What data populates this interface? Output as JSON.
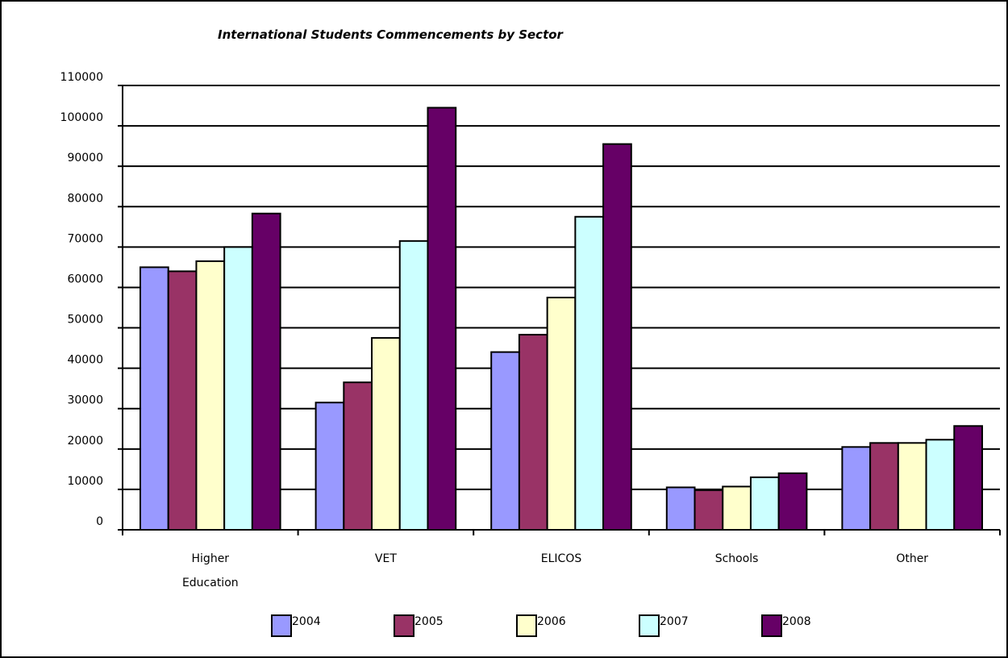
{
  "chart_data": {
    "type": "bar",
    "title": "International Students Commencements by Sector",
    "xlabel": "",
    "ylabel": "",
    "ylim": [
      0,
      110000
    ],
    "yticks": [
      0,
      10000,
      20000,
      30000,
      40000,
      50000,
      60000,
      70000,
      80000,
      90000,
      100000,
      110000
    ],
    "grid": true,
    "legend_position": "bottom",
    "categories": [
      [
        "Higher",
        "Education"
      ],
      [
        "VET"
      ],
      [
        "ELICOS"
      ],
      [
        "Schools"
      ],
      [
        "Other"
      ]
    ],
    "series": [
      {
        "name": "2004",
        "color": "#9999ff",
        "values": [
          65000,
          31500,
          44000,
          10500,
          20500
        ]
      },
      {
        "name": "2005",
        "color": "#993366",
        "values": [
          64000,
          36500,
          48300,
          9800,
          21500
        ]
      },
      {
        "name": "2006",
        "color": "#ffffcc",
        "values": [
          66500,
          47500,
          57500,
          10700,
          21500
        ]
      },
      {
        "name": "2007",
        "color": "#ccffff",
        "values": [
          70000,
          71500,
          77500,
          13000,
          22300
        ]
      },
      {
        "name": "2008",
        "color": "#660066",
        "values": [
          78300,
          104500,
          95500,
          14000,
          25700
        ]
      }
    ]
  }
}
